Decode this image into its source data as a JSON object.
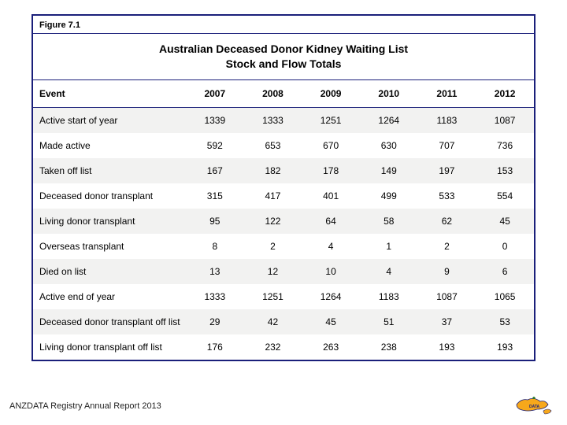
{
  "figure_label": "Figure 7.1",
  "title_line1": "Australian Deceased Donor Kidney Waiting List",
  "title_line2": "Stock and Flow Totals",
  "table": {
    "event_header": "Event",
    "years": [
      "2007",
      "2008",
      "2009",
      "2010",
      "2011",
      "2012"
    ],
    "rows": [
      {
        "label": "Active start of year",
        "values": [
          "1339",
          "1333",
          "1251",
          "1264",
          "1183",
          "1087"
        ]
      },
      {
        "label": "Made active",
        "values": [
          "592",
          "653",
          "670",
          "630",
          "707",
          "736"
        ]
      },
      {
        "label": "Taken off list",
        "values": [
          "167",
          "182",
          "178",
          "149",
          "197",
          "153"
        ]
      },
      {
        "label": "Deceased donor transplant",
        "values": [
          "315",
          "417",
          "401",
          "499",
          "533",
          "554"
        ]
      },
      {
        "label": "Living donor transplant",
        "values": [
          "95",
          "122",
          "64",
          "58",
          "62",
          "45"
        ]
      },
      {
        "label": "Overseas transplant",
        "values": [
          "8",
          "2",
          "4",
          "1",
          "2",
          "0"
        ]
      },
      {
        "label": "Died on list",
        "values": [
          "13",
          "12",
          "10",
          "4",
          "9",
          "6"
        ]
      },
      {
        "label": "Active end of year",
        "values": [
          "1333",
          "1251",
          "1264",
          "1183",
          "1087",
          "1065"
        ]
      },
      {
        "label": "Deceased donor transplant off list",
        "values": [
          "29",
          "42",
          "45",
          "51",
          "37",
          "53"
        ]
      },
      {
        "label": "Living donor transplant off list",
        "values": [
          "176",
          "232",
          "263",
          "238",
          "193",
          "193"
        ]
      }
    ],
    "row_bg_odd": "#f2f2f1",
    "row_bg_even": "#ffffff",
    "border_color": "#1a1f7a",
    "header_fontsize": 12,
    "cell_fontsize": 12,
    "title_fontsize": 14
  },
  "footer": "ANZDATA Registry Annual Report 2013",
  "logo": {
    "land_color": "#f7a81b",
    "stroke": "#1a1f7a",
    "leaf_color": "#2a7a2a",
    "text": "DATA"
  }
}
